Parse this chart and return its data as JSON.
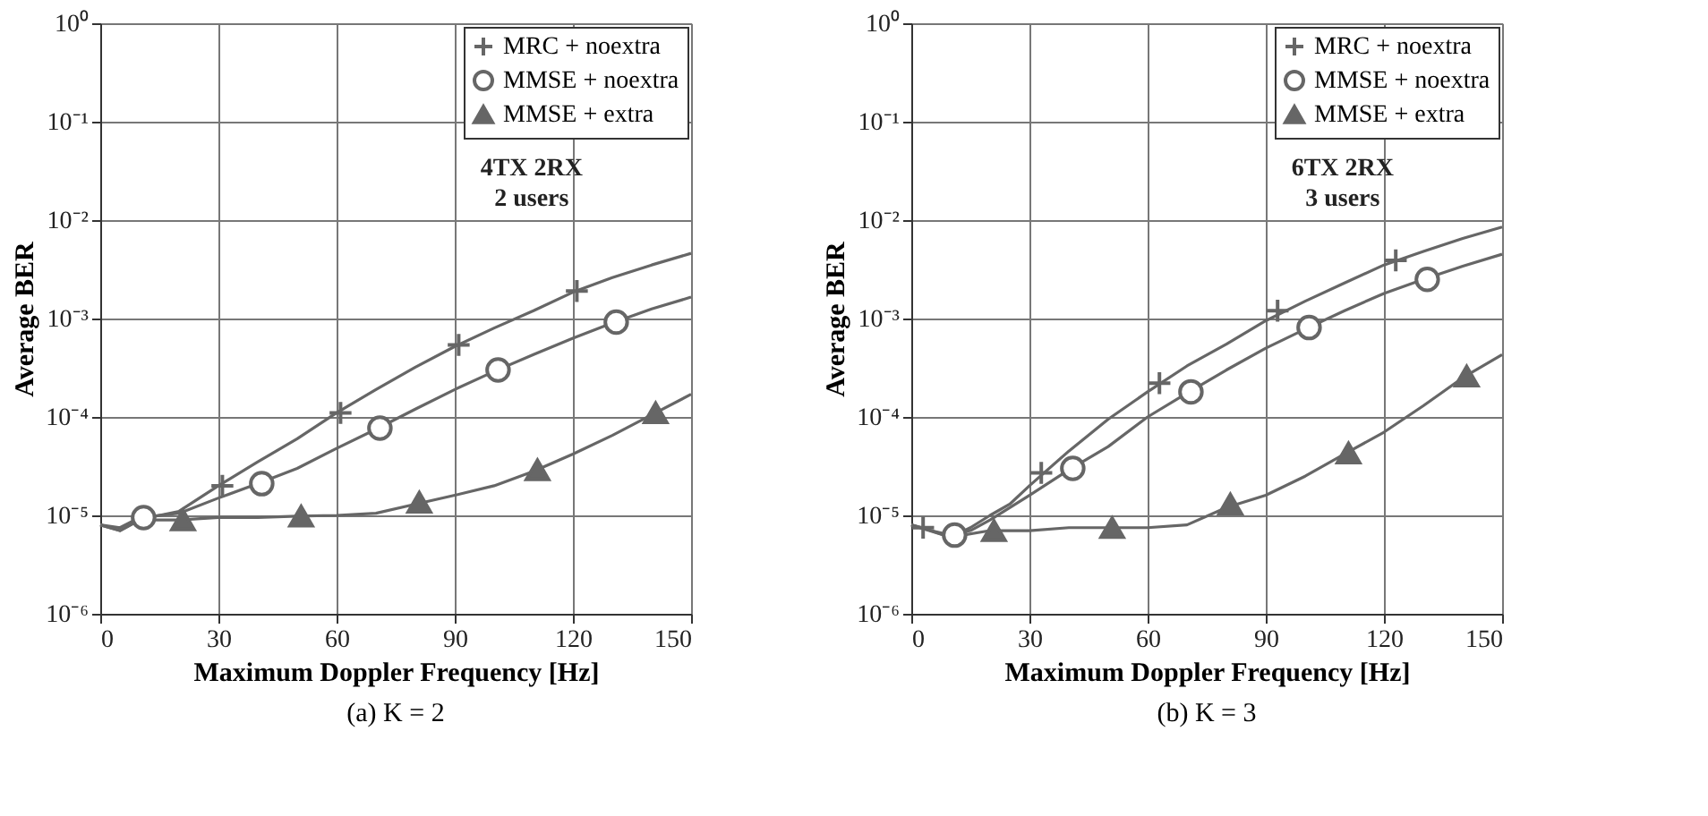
{
  "chart_data": [
    {
      "type": "line",
      "title": "(a) K = 2",
      "xlabel": "Maximum Doppler Frequency [Hz]",
      "ylabel": "Average BER",
      "log": "y",
      "grid": true,
      "legend": "top right",
      "xlim": [
        0,
        150
      ],
      "xticks": [
        0,
        30,
        60,
        90,
        120,
        150
      ],
      "ylim": [
        1e-06,
        1
      ],
      "yticks": [
        {
          "value": 1e-06,
          "label": "10⁻⁶"
        },
        {
          "value": 1e-05,
          "label": "10⁻⁵"
        },
        {
          "value": 0.0001,
          "label": "10⁻⁴"
        },
        {
          "value": 0.001,
          "label": "10⁻³"
        },
        {
          "value": 0.01,
          "label": "10⁻²"
        },
        {
          "value": 0.1,
          "label": "10⁻¹"
        },
        {
          "value": 1,
          "label": "10⁰"
        }
      ],
      "annotations": [
        "4TX 2RX",
        "2 users"
      ],
      "series": [
        {
          "color": "#666666",
          "marker": "none",
          "x": [
            0,
            5,
            10,
            15,
            20,
            30,
            40,
            50,
            60,
            70,
            80,
            90,
            100,
            110,
            120,
            130,
            140,
            150
          ],
          "values": [
            8e-06,
            7e-06,
            9e-06,
            1e-05,
            1.1e-05,
            2e-05,
            3.5e-05,
            6e-05,
            0.00011,
            0.00019,
            0.00032,
            0.00052,
            0.0008,
            0.0012,
            0.00185,
            0.0026,
            0.0035,
            0.0046
          ]
        },
        {
          "color": "#666666",
          "marker": "none",
          "x": [
            0,
            5,
            10,
            15,
            20,
            30,
            40,
            50,
            60,
            70,
            80,
            90,
            100,
            110,
            120,
            130,
            140,
            150
          ],
          "values": [
            8e-06,
            7.5e-06,
            9.5e-06,
            1e-05,
            1.05e-05,
            1.5e-05,
            2.1e-05,
            3e-05,
            4.8e-05,
            7.5e-05,
            0.00012,
            0.00019,
            0.00029,
            0.00043,
            0.00063,
            0.0009,
            0.00125,
            0.00165
          ]
        },
        {
          "color": "#666666",
          "marker": "none",
          "x": [
            0,
            5,
            10,
            20,
            30,
            40,
            50,
            60,
            70,
            80,
            90,
            100,
            110,
            120,
            130,
            140,
            150
          ],
          "values": [
            8e-06,
            7e-06,
            9e-06,
            9e-06,
            9.5e-06,
            9.5e-06,
            9.8e-06,
            1e-05,
            1.05e-05,
            1.3e-05,
            1.6e-05,
            2e-05,
            2.8e-05,
            4.2e-05,
            6.5e-05,
            0.000105,
            0.00017
          ]
        },
        {
          "type": "scatter",
          "name": "MRC + noextra",
          "color": "#666666",
          "marker": "cross",
          "x": [
            31,
            61,
            91,
            121
          ],
          "values": [
            2e-05,
            0.00011,
            0.00054,
            0.0019
          ]
        },
        {
          "type": "scatter",
          "name": "MMSE + noextra",
          "color": "#666666",
          "marker": "circle",
          "x": [
            11,
            41,
            71,
            101,
            131
          ],
          "values": [
            9.5e-06,
            2.1e-05,
            7.7e-05,
            0.0003,
            0.00092
          ]
        },
        {
          "type": "scatter",
          "name": "MMSE + extra",
          "color": "#666666",
          "marker": "triangle",
          "x": [
            21,
            51,
            81,
            111,
            141
          ],
          "values": [
            9e-06,
            9.8e-06,
            1.36e-05,
            2.9e-05,
            0.00011
          ]
        }
      ]
    },
    {
      "type": "line",
      "title": "(b) K = 3",
      "xlabel": "Maximum Doppler Frequency [Hz]",
      "ylabel": "Average BER",
      "log": "y",
      "grid": true,
      "legend": "top right",
      "xlim": [
        0,
        150
      ],
      "xticks": [
        0,
        30,
        60,
        90,
        120,
        150
      ],
      "ylim": [
        1e-06,
        1
      ],
      "yticks": [
        {
          "value": 1e-06,
          "label": "10⁻⁶"
        },
        {
          "value": 1e-05,
          "label": "10⁻⁵"
        },
        {
          "value": 0.0001,
          "label": "10⁻⁴"
        },
        {
          "value": 0.001,
          "label": "10⁻³"
        },
        {
          "value": 0.01,
          "label": "10⁻²"
        },
        {
          "value": 0.1,
          "label": "10⁻¹"
        },
        {
          "value": 1,
          "label": "10⁰"
        }
      ],
      "annotations": [
        "6TX 2RX",
        "3 users"
      ],
      "series": [
        {
          "color": "#666666",
          "marker": "none",
          "x": [
            0,
            5,
            10,
            15,
            20,
            25,
            30,
            40,
            50,
            60,
            70,
            80,
            90,
            100,
            110,
            120,
            130,
            140,
            150
          ],
          "values": [
            8e-06,
            7e-06,
            6e-06,
            7.5e-06,
            1e-05,
            1.3e-05,
            2e-05,
            4.5e-05,
            9.5e-05,
            0.00018,
            0.00033,
            0.00055,
            0.00095,
            0.0015,
            0.0023,
            0.0035,
            0.0048,
            0.0065,
            0.0085
          ]
        },
        {
          "color": "#666666",
          "marker": "none",
          "x": [
            0,
            5,
            10,
            15,
            20,
            30,
            40,
            50,
            60,
            70,
            80,
            90,
            100,
            110,
            120,
            130,
            140,
            150
          ],
          "values": [
            8e-06,
            7e-06,
            6.3e-06,
            7e-06,
            9e-06,
            1.6e-05,
            2.9e-05,
            5e-05,
            0.0001,
            0.000175,
            0.0003,
            0.0005,
            0.00078,
            0.0012,
            0.0018,
            0.0025,
            0.0034,
            0.0045
          ]
        },
        {
          "color": "#666666",
          "marker": "none",
          "x": [
            0,
            10,
            20,
            30,
            40,
            50,
            60,
            70,
            80,
            90,
            100,
            110,
            120,
            130,
            140,
            150
          ],
          "values": [
            8e-06,
            6e-06,
            7e-06,
            7e-06,
            7.5e-06,
            7.5e-06,
            7.5e-06,
            8e-06,
            1.2e-05,
            1.6e-05,
            2.5e-05,
            4.2e-05,
            7e-05,
            0.00013,
            0.00025,
            0.00043
          ]
        },
        {
          "type": "scatter",
          "name": "MRC + noextra",
          "color": "#666666",
          "marker": "cross",
          "x": [
            3,
            33,
            63,
            93,
            123
          ],
          "values": [
            7.5e-06,
            2.7e-05,
            0.00022,
            0.0012,
            0.0039
          ]
        },
        {
          "type": "scatter",
          "name": "MMSE + noextra",
          "color": "#666666",
          "marker": "circle",
          "x": [
            11,
            41,
            71,
            101,
            131
          ],
          "values": [
            6.3e-06,
            3e-05,
            0.00018,
            0.00081,
            0.0025
          ]
        },
        {
          "type": "scatter",
          "name": "MMSE + extra",
          "color": "#666666",
          "marker": "triangle",
          "x": [
            21,
            51,
            81,
            111,
            141
          ],
          "values": [
            7e-06,
            7.5e-06,
            1.3e-05,
            4.3e-05,
            0.00026
          ]
        }
      ]
    }
  ]
}
